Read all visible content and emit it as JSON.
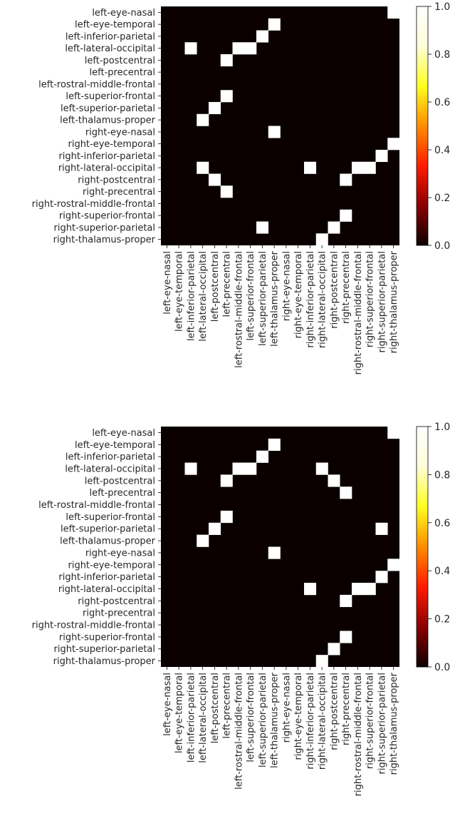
{
  "chart_data": [
    {
      "type": "heatmap",
      "rows": [
        "left-eye-nasal",
        "left-eye-temporal",
        "left-inferior-parietal",
        "left-lateral-occipital",
        "left-postcentral",
        "left-precentral",
        "left-rostral-middle-frontal",
        "left-superior-frontal",
        "left-superior-parietal",
        "left-thalamus-proper",
        "right-eye-nasal",
        "right-eye-temporal",
        "right-inferior-parietal",
        "right-lateral-occipital",
        "right-postcentral",
        "right-precentral",
        "right-rostral-middle-frontal",
        "right-superior-frontal",
        "right-superior-parietal",
        "right-thalamus-proper"
      ],
      "columns": [
        "left-eye-nasal",
        "left-eye-temporal",
        "left-inferior-parietal",
        "left-lateral-occipital",
        "left-postcentral",
        "left-precentral",
        "left-rostral-middle-frontal",
        "left-superior-frontal",
        "left-superior-parietal",
        "left-thalamus-proper",
        "right-eye-nasal",
        "right-eye-temporal",
        "right-inferior-parietal",
        "right-lateral-occipital",
        "right-postcentral",
        "right-precentral",
        "right-rostral-middle-frontal",
        "right-superior-frontal",
        "right-superior-parietal",
        "right-thalamus-proper"
      ],
      "values": [
        [
          0,
          0,
          0,
          0,
          0,
          0,
          0,
          0,
          0,
          0,
          0,
          0,
          0,
          0,
          0,
          0,
          0,
          0,
          0,
          1
        ],
        [
          0,
          0,
          0,
          0,
          0,
          0,
          0,
          0,
          0,
          1,
          0,
          0,
          0,
          0,
          0,
          0,
          0,
          0,
          0,
          0
        ],
        [
          0,
          0,
          0,
          0,
          0,
          0,
          0,
          0,
          1,
          0,
          0,
          0,
          0,
          0,
          0,
          0,
          0,
          0,
          0,
          0
        ],
        [
          0,
          0,
          1,
          0,
          0,
          0,
          1,
          1,
          0,
          0,
          0,
          0,
          0,
          0,
          0,
          0,
          0,
          0,
          0,
          0
        ],
        [
          0,
          0,
          0,
          0,
          0,
          1,
          0,
          0,
          0,
          0,
          0,
          0,
          0,
          0,
          0,
          0,
          0,
          0,
          0,
          0
        ],
        [
          0,
          0,
          0,
          0,
          0,
          0,
          0,
          0,
          0,
          0,
          0,
          0,
          0,
          0,
          0,
          0,
          0,
          0,
          0,
          0
        ],
        [
          0,
          0,
          0,
          0,
          0,
          0,
          0,
          0,
          0,
          0,
          0,
          0,
          0,
          0,
          0,
          0,
          0,
          0,
          0,
          0
        ],
        [
          0,
          0,
          0,
          0,
          0,
          1,
          0,
          0,
          0,
          0,
          0,
          0,
          0,
          0,
          0,
          0,
          0,
          0,
          0,
          0
        ],
        [
          0,
          0,
          0,
          0,
          1,
          0,
          0,
          0,
          0,
          0,
          0,
          0,
          0,
          0,
          0,
          0,
          0,
          0,
          0,
          0
        ],
        [
          0,
          0,
          0,
          1,
          0,
          0,
          0,
          0,
          0,
          0,
          0,
          0,
          0,
          0,
          0,
          0,
          0,
          0,
          0,
          0
        ],
        [
          0,
          0,
          0,
          0,
          0,
          0,
          0,
          0,
          0,
          1,
          0,
          0,
          0,
          0,
          0,
          0,
          0,
          0,
          0,
          0
        ],
        [
          0,
          0,
          0,
          0,
          0,
          0,
          0,
          0,
          0,
          0,
          0,
          0,
          0,
          0,
          0,
          0,
          0,
          0,
          0,
          1
        ],
        [
          0,
          0,
          0,
          0,
          0,
          0,
          0,
          0,
          0,
          0,
          0,
          0,
          0,
          0,
          0,
          0,
          0,
          0,
          1,
          0
        ],
        [
          0,
          0,
          0,
          1,
          0,
          0,
          0,
          0,
          0,
          0,
          0,
          0,
          1,
          0,
          0,
          0,
          1,
          1,
          0,
          0
        ],
        [
          0,
          0,
          0,
          0,
          1,
          0,
          0,
          0,
          0,
          0,
          0,
          0,
          0,
          0,
          0,
          1,
          0,
          0,
          0,
          0
        ],
        [
          0,
          0,
          0,
          0,
          0,
          1,
          0,
          0,
          0,
          0,
          0,
          0,
          0,
          0,
          0,
          0,
          0,
          0,
          0,
          0
        ],
        [
          0,
          0,
          0,
          0,
          0,
          0,
          0,
          0,
          0,
          0,
          0,
          0,
          0,
          0,
          0,
          0,
          0,
          0,
          0,
          0
        ],
        [
          0,
          0,
          0,
          0,
          0,
          0,
          0,
          0,
          0,
          0,
          0,
          0,
          0,
          0,
          0,
          1,
          0,
          0,
          0,
          0
        ],
        [
          0,
          0,
          0,
          0,
          0,
          0,
          0,
          0,
          1,
          0,
          0,
          0,
          0,
          0,
          1,
          0,
          0,
          0,
          0,
          0
        ],
        [
          0,
          0,
          0,
          0,
          0,
          0,
          0,
          0,
          0,
          0,
          0,
          0,
          0,
          1,
          0,
          0,
          0,
          0,
          0,
          0
        ]
      ],
      "colormap": "hot",
      "colorbar": {
        "range": [
          0.0,
          1.0
        ],
        "ticks": [
          "0.0",
          "0.2",
          "0.4",
          "0.6",
          "0.8",
          "1.0"
        ]
      },
      "grid": false,
      "title": "",
      "xlabel": "",
      "ylabel": ""
    },
    {
      "type": "heatmap",
      "rows": [
        "left-eye-nasal",
        "left-eye-temporal",
        "left-inferior-parietal",
        "left-lateral-occipital",
        "left-postcentral",
        "left-precentral",
        "left-rostral-middle-frontal",
        "left-superior-frontal",
        "left-superior-parietal",
        "left-thalamus-proper",
        "right-eye-nasal",
        "right-eye-temporal",
        "right-inferior-parietal",
        "right-lateral-occipital",
        "right-postcentral",
        "right-precentral",
        "right-rostral-middle-frontal",
        "right-superior-frontal",
        "right-superior-parietal",
        "right-thalamus-proper"
      ],
      "columns": [
        "left-eye-nasal",
        "left-eye-temporal",
        "left-inferior-parietal",
        "left-lateral-occipital",
        "left-postcentral",
        "left-precentral",
        "left-rostral-middle-frontal",
        "left-superior-frontal",
        "left-superior-parietal",
        "left-thalamus-proper",
        "right-eye-nasal",
        "right-eye-temporal",
        "right-inferior-parietal",
        "right-lateral-occipital",
        "right-postcentral",
        "right-precentral",
        "right-rostral-middle-frontal",
        "right-superior-frontal",
        "right-superior-parietal",
        "right-thalamus-proper"
      ],
      "values": [
        [
          0,
          0,
          0,
          0,
          0,
          0,
          0,
          0,
          0,
          0,
          0,
          0,
          0,
          0,
          0,
          0,
          0,
          0,
          0,
          1
        ],
        [
          0,
          0,
          0,
          0,
          0,
          0,
          0,
          0,
          0,
          1,
          0,
          0,
          0,
          0,
          0,
          0,
          0,
          0,
          0,
          0
        ],
        [
          0,
          0,
          0,
          0,
          0,
          0,
          0,
          0,
          1,
          0,
          0,
          0,
          0,
          0,
          0,
          0,
          0,
          0,
          0,
          0
        ],
        [
          0,
          0,
          1,
          0,
          0,
          0,
          1,
          1,
          0,
          0,
          0,
          0,
          0,
          1,
          0,
          0,
          0,
          0,
          0,
          0
        ],
        [
          0,
          0,
          0,
          0,
          0,
          1,
          0,
          0,
          0,
          0,
          0,
          0,
          0,
          0,
          1,
          0,
          0,
          0,
          0,
          0
        ],
        [
          0,
          0,
          0,
          0,
          0,
          0,
          0,
          0,
          0,
          0,
          0,
          0,
          0,
          0,
          0,
          1,
          0,
          0,
          0,
          0
        ],
        [
          0,
          0,
          0,
          0,
          0,
          0,
          0,
          0,
          0,
          0,
          0,
          0,
          0,
          0,
          0,
          0,
          0,
          0,
          0,
          0
        ],
        [
          0,
          0,
          0,
          0,
          0,
          1,
          0,
          0,
          0,
          0,
          0,
          0,
          0,
          0,
          0,
          0,
          0,
          0,
          0,
          0
        ],
        [
          0,
          0,
          0,
          0,
          1,
          0,
          0,
          0,
          0,
          0,
          0,
          0,
          0,
          0,
          0,
          0,
          0,
          0,
          1,
          0
        ],
        [
          0,
          0,
          0,
          1,
          0,
          0,
          0,
          0,
          0,
          0,
          0,
          0,
          0,
          0,
          0,
          0,
          0,
          0,
          0,
          0
        ],
        [
          0,
          0,
          0,
          0,
          0,
          0,
          0,
          0,
          0,
          1,
          0,
          0,
          0,
          0,
          0,
          0,
          0,
          0,
          0,
          0
        ],
        [
          0,
          0,
          0,
          0,
          0,
          0,
          0,
          0,
          0,
          0,
          0,
          0,
          0,
          0,
          0,
          0,
          0,
          0,
          0,
          1
        ],
        [
          0,
          0,
          0,
          0,
          0,
          0,
          0,
          0,
          0,
          0,
          0,
          0,
          0,
          0,
          0,
          0,
          0,
          0,
          1,
          0
        ],
        [
          0,
          0,
          0,
          0,
          0,
          0,
          0,
          0,
          0,
          0,
          0,
          0,
          1,
          0,
          0,
          0,
          1,
          1,
          0,
          0
        ],
        [
          0,
          0,
          0,
          0,
          0,
          0,
          0,
          0,
          0,
          0,
          0,
          0,
          0,
          0,
          0,
          1,
          0,
          0,
          0,
          0
        ],
        [
          0,
          0,
          0,
          0,
          0,
          0,
          0,
          0,
          0,
          0,
          0,
          0,
          0,
          0,
          0,
          0,
          0,
          0,
          0,
          0
        ],
        [
          0,
          0,
          0,
          0,
          0,
          0,
          0,
          0,
          0,
          0,
          0,
          0,
          0,
          0,
          0,
          0,
          0,
          0,
          0,
          0
        ],
        [
          0,
          0,
          0,
          0,
          0,
          0,
          0,
          0,
          0,
          0,
          0,
          0,
          0,
          0,
          0,
          1,
          0,
          0,
          0,
          0
        ],
        [
          0,
          0,
          0,
          0,
          0,
          0,
          0,
          0,
          0,
          0,
          0,
          0,
          0,
          0,
          1,
          0,
          0,
          0,
          0,
          0
        ],
        [
          0,
          0,
          0,
          0,
          0,
          0,
          0,
          0,
          0,
          0,
          0,
          0,
          0,
          1,
          0,
          0,
          0,
          0,
          0,
          0
        ]
      ],
      "colormap": "hot",
      "colorbar": {
        "range": [
          0.0,
          1.0
        ],
        "ticks": [
          "0.0",
          "0.2",
          "0.4",
          "0.6",
          "0.8",
          "1.0"
        ]
      },
      "grid": false,
      "title": "",
      "xlabel": "",
      "ylabel": ""
    }
  ],
  "colors": {
    "zero": "#0b0000",
    "one": "#ffffff",
    "colormap_stops": [
      "#0b0000",
      "#8b0000",
      "#ff1c00",
      "#ff8c00",
      "#ffff20",
      "#ffffd8",
      "#ffffff"
    ]
  }
}
